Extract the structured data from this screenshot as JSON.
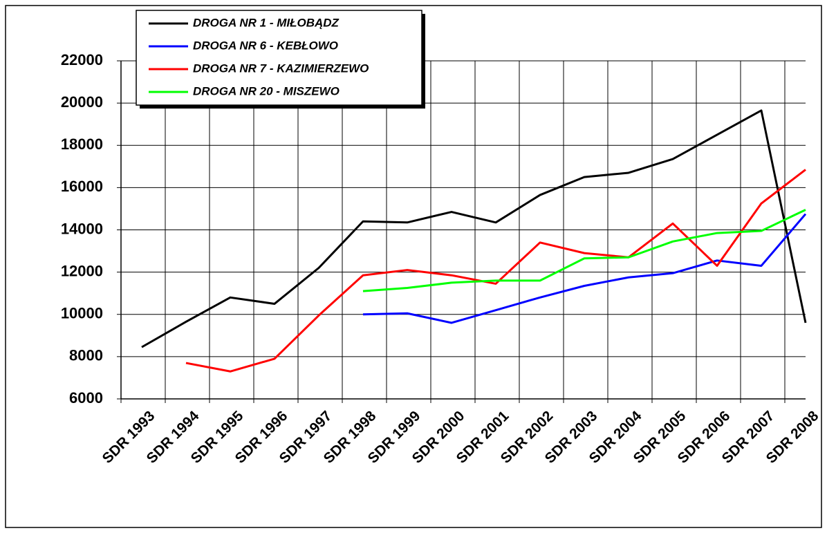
{
  "chart_data": {
    "type": "line",
    "categories": [
      "SDR 1993",
      "SDR 1994",
      "SDR 1995",
      "SDR 1996",
      "SDR 1997",
      "SDR 1998",
      "SDR 1999",
      "SDR 2000",
      "SDR 2001",
      "SDR 2002",
      "SDR 2003",
      "SDR 2004",
      "SDR 2005",
      "SDR 2006",
      "SDR 2007",
      "SDR 2008"
    ],
    "series": [
      {
        "name": "DROGA NR 1 - MIŁOBĄDZ",
        "color": "#000000",
        "values": [
          8450,
          9650,
          10800,
          10500,
          12200,
          14400,
          14350,
          14850,
          14350,
          15650,
          16500,
          16700,
          17350,
          18500,
          19650,
          9600
        ]
      },
      {
        "name": "DROGA NR 6 - KEBŁOWO",
        "color": "#0000ff",
        "values": [
          null,
          null,
          null,
          null,
          null,
          10000,
          10050,
          9600,
          10200,
          10800,
          11350,
          11750,
          11950,
          12550,
          12300,
          14750
        ]
      },
      {
        "name": "DROGA NR 7 - KAZIMIERZEWO",
        "color": "#ff0000",
        "values": [
          null,
          7700,
          7300,
          7900,
          9950,
          11850,
          12100,
          11850,
          11450,
          13400,
          12900,
          12700,
          14300,
          12300,
          15250,
          16850
        ]
      },
      {
        "name": "DROGA NR 20 - MISZEWO",
        "color": "#00ff00",
        "values": [
          null,
          null,
          null,
          null,
          null,
          11100,
          11250,
          11500,
          11600,
          11600,
          12650,
          12700,
          13450,
          13850,
          13950,
          14950
        ]
      }
    ],
    "ylim": [
      6000,
      22000
    ],
    "yticks": [
      6000,
      8000,
      10000,
      12000,
      14000,
      16000,
      18000,
      20000,
      22000
    ],
    "grid": true,
    "legend": "upper left"
  }
}
